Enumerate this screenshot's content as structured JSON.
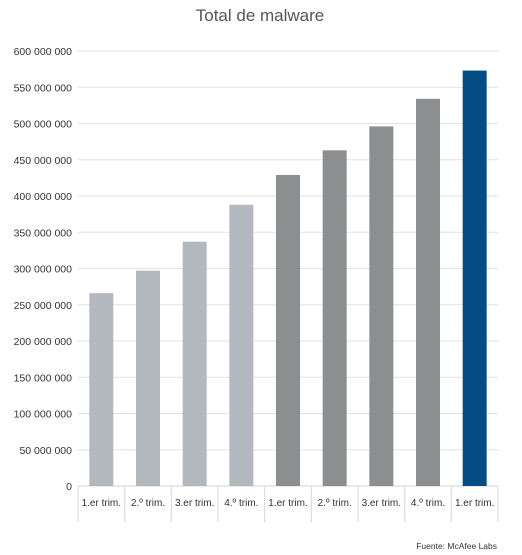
{
  "chart_data": {
    "type": "bar",
    "title": "Total de malware",
    "xlabel": "",
    "ylabel": "",
    "source": "Fuente: McAfee Labs",
    "ylim": [
      0,
      600000000
    ],
    "yticks": [
      0,
      50000000,
      100000000,
      150000000,
      200000000,
      250000000,
      300000000,
      350000000,
      400000000,
      450000000,
      500000000,
      550000000,
      600000000
    ],
    "ytick_labels": [
      "0",
      "50 000 000",
      "100 000 000",
      "150 000 000",
      "200 000 000",
      "250 000 000",
      "300 000 000",
      "350 000 000",
      "400 000 000",
      "450 000 000",
      "500 000 000",
      "550 000 000",
      "600 000 000"
    ],
    "grid": true,
    "legend": "none",
    "categories": [
      "1.er trim.",
      "2.º trim.",
      "3.er trim.",
      "4.º trim.",
      "1.er trim.",
      "2.º trim.",
      "3.er trim.",
      "4.º trim.",
      "1.er trim."
    ],
    "values": [
      266000000,
      297000000,
      337000000,
      388000000,
      429000000,
      463000000,
      496000000,
      534000000,
      573000000
    ],
    "colors": [
      "#b2b8bd",
      "#b2b8bd",
      "#b2b8bd",
      "#b2b8bd",
      "#8d8e90",
      "#8d8e90",
      "#8d8e90",
      "#8d8e90",
      "#044e85"
    ]
  }
}
